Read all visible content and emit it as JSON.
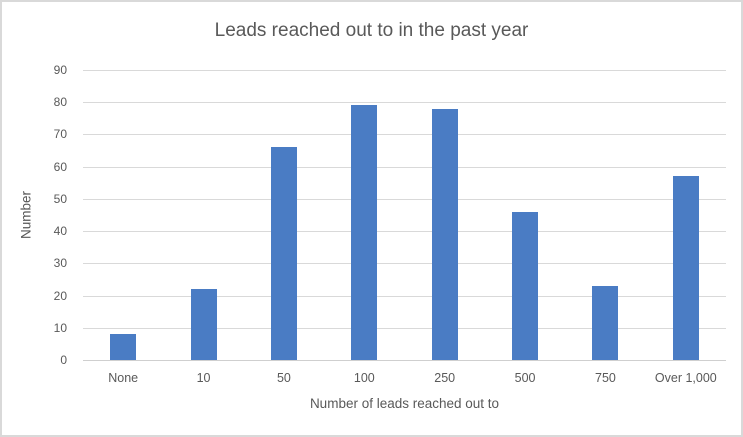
{
  "chart_data": {
    "type": "bar",
    "title": "Leads reached out to in the past year",
    "xlabel": "Number of leads reached out to",
    "ylabel": "Number",
    "categories": [
      "None",
      "10",
      "50",
      "100",
      "250",
      "500",
      "750",
      "Over 1,000"
    ],
    "values": [
      8,
      22,
      66,
      79,
      78,
      46,
      23,
      57
    ],
    "ylim": [
      0,
      90
    ],
    "ytick_step": 10,
    "ytick_labels": [
      "0",
      "10",
      "20",
      "30",
      "40",
      "50",
      "60",
      "70",
      "80",
      "90"
    ],
    "grid": true,
    "legend": false,
    "colors": {
      "bar_fill": "#4A7CC4",
      "gridline": "#D9D9D9",
      "axis_line": "#CFCFCF",
      "text": "#595959",
      "chart_border": "#D9D9D9",
      "background": "#FFFFFF"
    }
  }
}
